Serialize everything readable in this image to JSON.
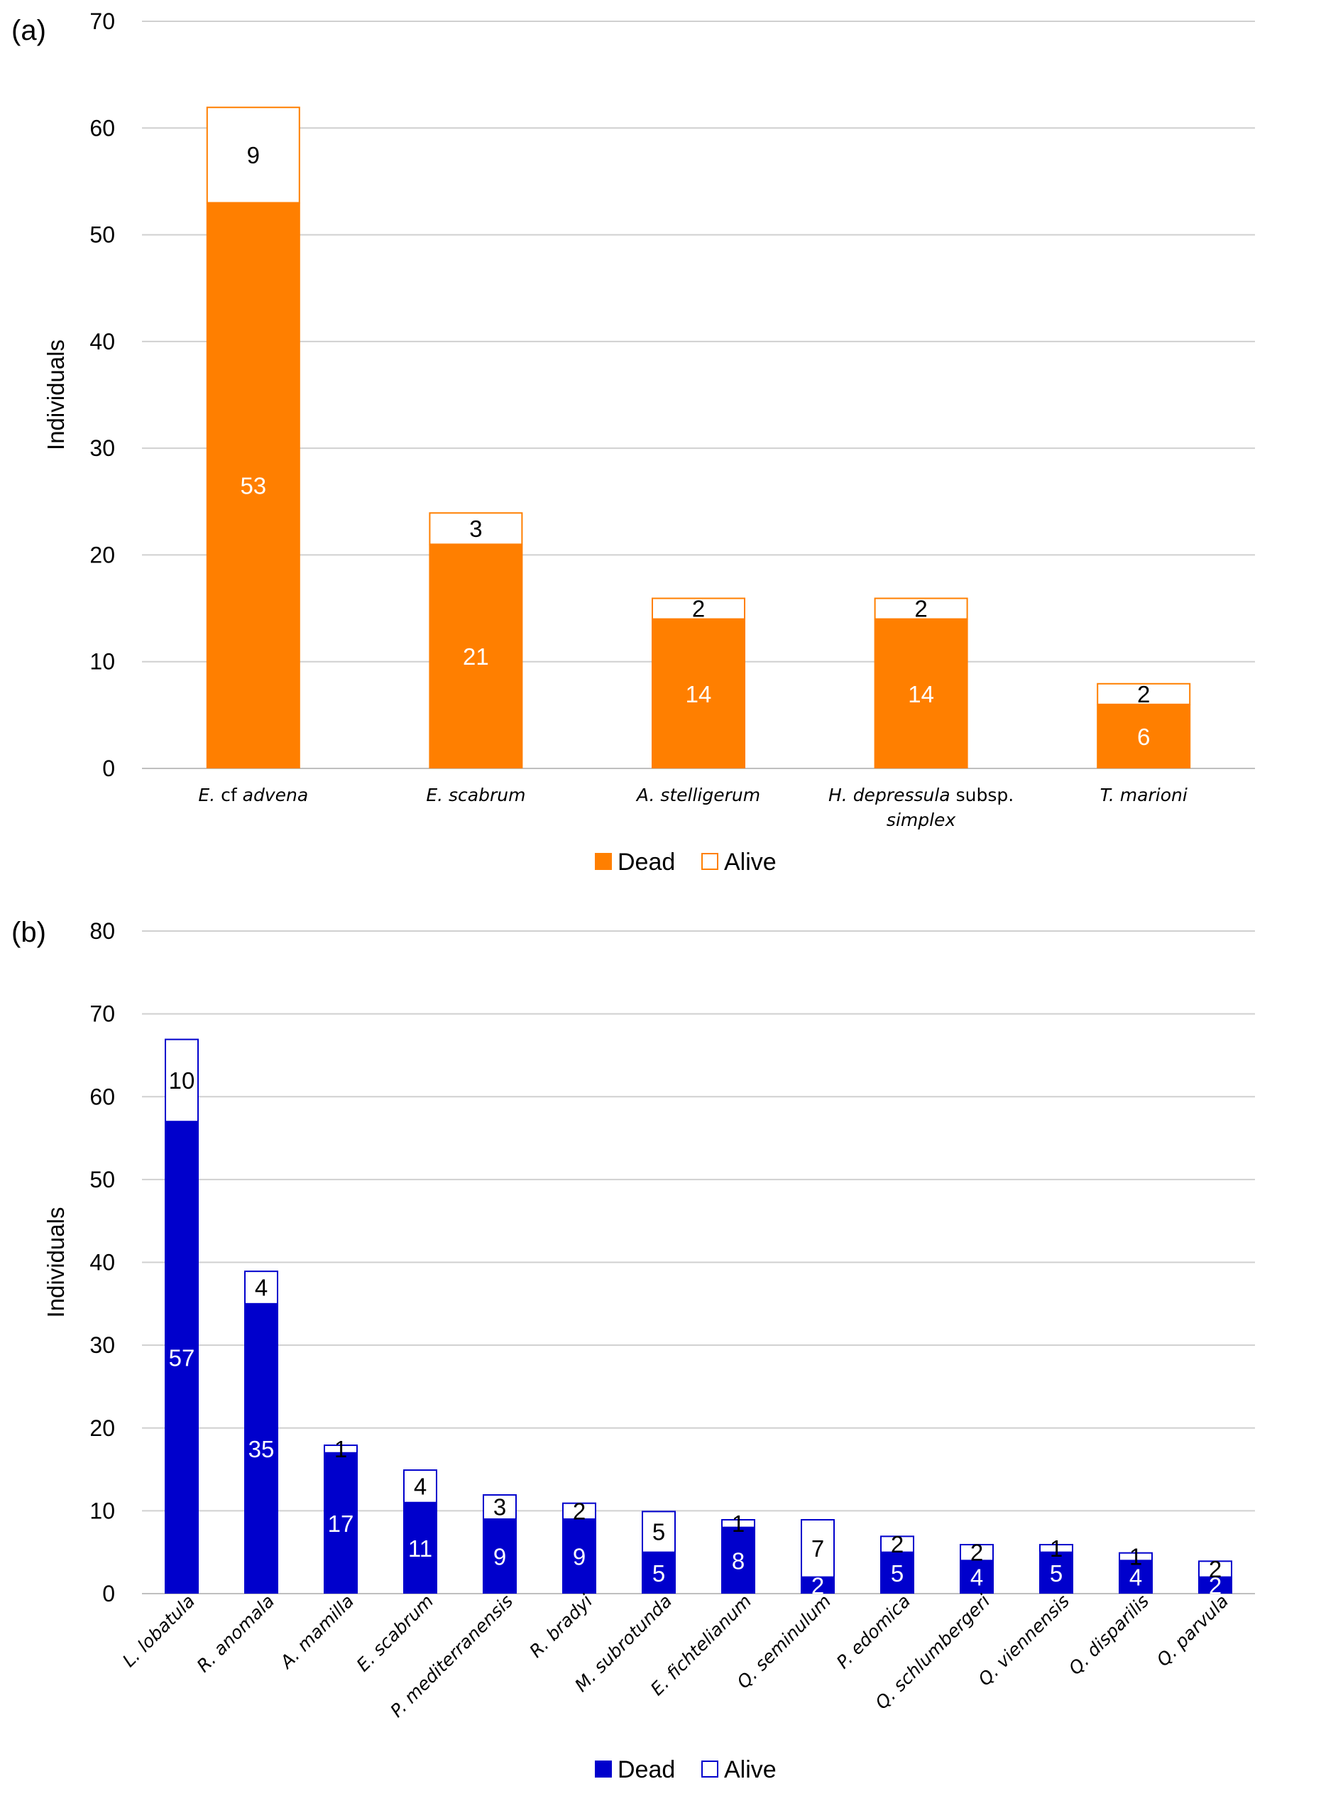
{
  "chart_data": [
    {
      "id": "a",
      "type": "bar",
      "stacked": true,
      "panel_label": "(a)",
      "ylabel": "Individuals",
      "ylim": [
        0,
        70
      ],
      "yticks": [
        0,
        10,
        20,
        30,
        40,
        50,
        60,
        70
      ],
      "grid": true,
      "color": "#FF7F00",
      "categories": [
        {
          "name": "E. cf advena",
          "parts": [
            [
              "E.",
              true
            ],
            [
              " cf ",
              false
            ],
            [
              "advena",
              true
            ]
          ]
        },
        {
          "name": "E. scabrum",
          "parts": [
            [
              "E. scabrum",
              true
            ]
          ]
        },
        {
          "name": "A. stelligerum",
          "parts": [
            [
              "A. stelligerum",
              true
            ]
          ]
        },
        {
          "name": "H. depressula subsp. simplex",
          "parts": [
            [
              "H. depressula",
              true
            ],
            [
              " subsp.",
              false
            ]
          ],
          "line2": "simplex"
        },
        {
          "name": "T. marioni",
          "parts": [
            [
              "T. marioni",
              true
            ]
          ]
        }
      ],
      "series": [
        {
          "name": "Dead",
          "values": [
            53,
            21,
            14,
            14,
            6
          ],
          "labels": [
            "53",
            "21",
            "14",
            "14",
            "6"
          ]
        },
        {
          "name": "Alive",
          "values": [
            9,
            3,
            2,
            2,
            2
          ],
          "labels": [
            "9",
            "3",
            "2",
            "2",
            "2"
          ]
        }
      ],
      "legend": {
        "position": "bottom",
        "items": [
          "Dead",
          "Alive"
        ]
      }
    },
    {
      "id": "b",
      "type": "bar",
      "stacked": true,
      "panel_label": "(b)",
      "ylabel": "Individuals",
      "ylim": [
        0,
        80
      ],
      "yticks": [
        0,
        10,
        20,
        30,
        40,
        50,
        60,
        70,
        80
      ],
      "grid": true,
      "color": "#0000CC",
      "categories": [
        {
          "name": "L. lobatula"
        },
        {
          "name": "R. anomala"
        },
        {
          "name": "A. mamilla"
        },
        {
          "name": "E. scabrum"
        },
        {
          "name": "P. mediterranensis"
        },
        {
          "name": "R. bradyi"
        },
        {
          "name": "M. subrotunda"
        },
        {
          "name": "E. fichtelianum"
        },
        {
          "name": "Q. seminulum"
        },
        {
          "name": "P. edomica"
        },
        {
          "name": "Q. schlumbergeri"
        },
        {
          "name": "Q. viennensis"
        },
        {
          "name": "Q. disparilis"
        },
        {
          "name": "Q. parvula"
        }
      ],
      "series": [
        {
          "name": "Dead",
          "values": [
            57,
            35,
            17,
            11,
            9,
            9,
            5,
            8,
            2,
            5,
            4,
            5,
            4,
            2
          ],
          "labels": [
            "57",
            "35",
            "17",
            "11",
            "9",
            "9",
            "5",
            "8",
            "2",
            "5",
            "4",
            "5",
            "4",
            "2"
          ]
        },
        {
          "name": "Alive",
          "values": [
            10,
            4,
            1,
            4,
            3,
            2,
            5,
            1,
            7,
            2,
            2,
            1,
            1,
            2
          ],
          "labels": [
            "10",
            "4",
            "1",
            "4",
            "3",
            "2",
            "5",
            "1",
            "7",
            "2",
            "2",
            "1",
            "1",
            "2"
          ]
        }
      ],
      "legend": {
        "position": "bottom",
        "items": [
          "Dead",
          "Alive"
        ]
      }
    }
  ]
}
